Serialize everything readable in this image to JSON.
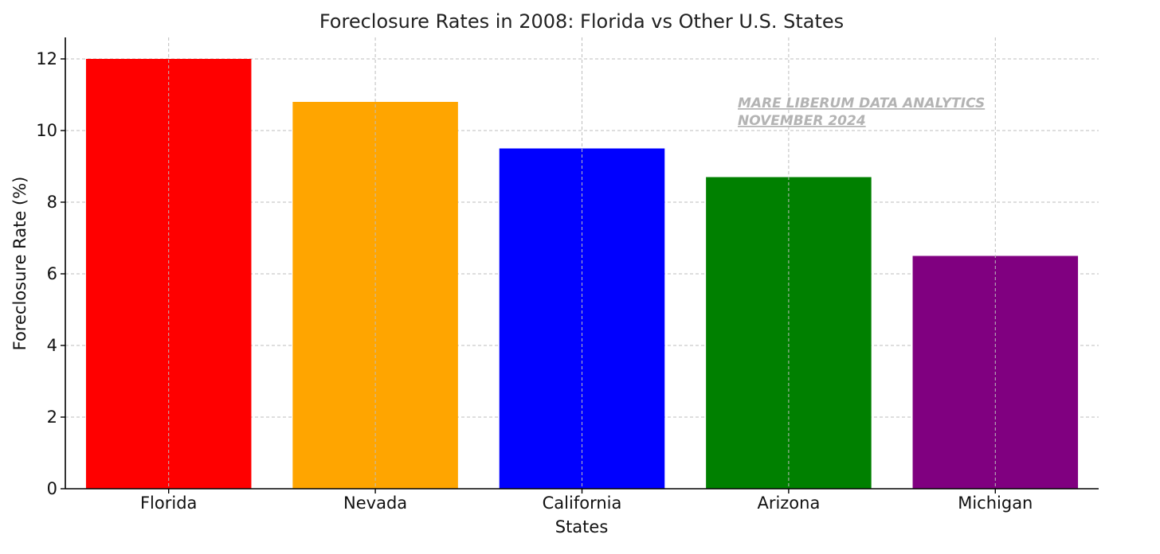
{
  "chart_data": {
    "type": "bar",
    "title": "Foreclosure Rates in 2008: Florida vs Other U.S. States",
    "xlabel": "States",
    "ylabel": "Foreclosure Rate (%)",
    "categories": [
      "Florida",
      "Nevada",
      "California",
      "Arizona",
      "Michigan"
    ],
    "values": [
      12.0,
      10.8,
      9.5,
      8.7,
      6.5
    ],
    "colors": [
      "#ff0000",
      "#ffa500",
      "#0000ff",
      "#008000",
      "#800080"
    ],
    "ylim": [
      0,
      12.6
    ],
    "yticks": [
      0,
      2,
      4,
      6,
      8,
      10,
      12
    ],
    "grid": true,
    "watermark": [
      "MARE LIBERUM DATA ANALYTICS",
      "NOVEMBER 2024"
    ]
  }
}
